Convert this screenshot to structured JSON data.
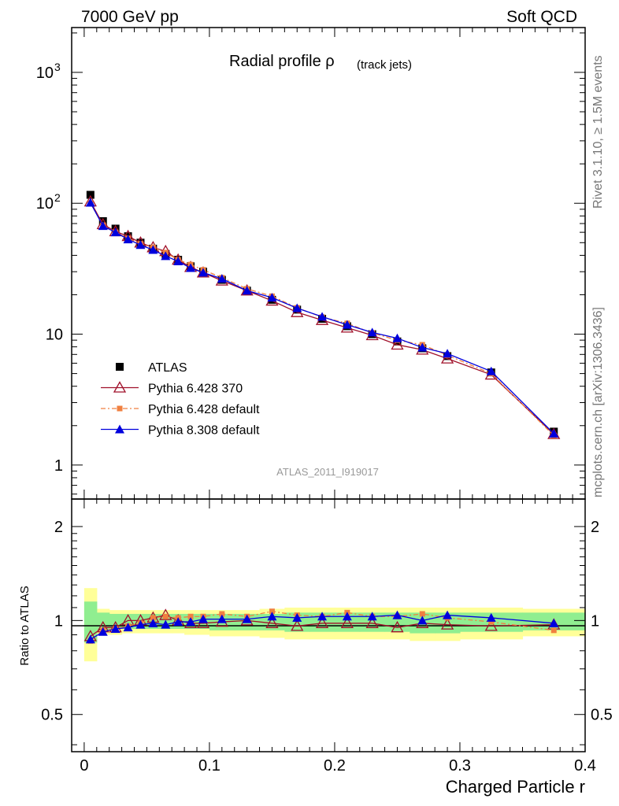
{
  "header": {
    "left": "7000 GeV pp",
    "right": "Soft QCD"
  },
  "side": {
    "rivet": "Rivet 3.1.10, ≥ 1.5M events",
    "mcplots": "mcplots.cern.ch [arXiv:1306.3436]"
  },
  "chart_data": [
    {
      "type": "line",
      "title": "Radial profile ρ",
      "title_suffix": "(track jets)",
      "watermark": "ATLAS_2011_I919017",
      "xlabel": "",
      "ylabel": "",
      "xlim": [
        -0.01,
        0.4
      ],
      "ylim": [
        0.55,
        2200
      ],
      "yscale": "log",
      "yticks": [
        1,
        10,
        100,
        1000
      ],
      "ytick_labels": [
        "1",
        "10",
        "10^2",
        "10^3"
      ],
      "legend": {
        "position": "bottom-left"
      },
      "x": [
        0.005,
        0.015,
        0.025,
        0.035,
        0.045,
        0.055,
        0.065,
        0.075,
        0.085,
        0.095,
        0.11,
        0.13,
        0.15,
        0.17,
        0.19,
        0.21,
        0.23,
        0.25,
        0.27,
        0.29,
        0.325,
        0.375
      ],
      "series": [
        {
          "name": "ATLAS",
          "color": "#000000",
          "marker": "square",
          "values": [
            116,
            73,
            64,
            56,
            50,
            45,
            41,
            37,
            33,
            30,
            26,
            21.5,
            18.3,
            15.4,
            13.1,
            11.5,
            10.0,
            8.8,
            7.8,
            6.8,
            5.1,
            1.8
          ]
        },
        {
          "name": "Pythia 6.428 370",
          "color": "#a0102a",
          "marker": "open-triangle",
          "values": [
            103,
            69,
            61,
            56,
            50,
            46,
            43,
            37,
            32.5,
            29.5,
            25.6,
            21.5,
            18.0,
            14.7,
            12.8,
            11.2,
            9.8,
            8.3,
            7.6,
            6.5,
            4.9,
            1.72
          ]
        },
        {
          "name": "Pythia 6.428 default",
          "color": "#f08040",
          "marker": "square-dash",
          "values": [
            100,
            68,
            60,
            54,
            49,
            46,
            42,
            37,
            34,
            31,
            27,
            22.2,
            19.5,
            15.9,
            13.5,
            12.1,
            10.2,
            9.0,
            8.3,
            6.9,
            5.0,
            1.68
          ]
        },
        {
          "name": "Pythia 8.308 default",
          "color": "#0000dd",
          "marker": "triangle",
          "values": [
            101,
            67,
            60,
            53,
            48,
            44,
            39.5,
            36,
            32,
            29.5,
            26.5,
            21.5,
            19.0,
            15.8,
            13.6,
            11.8,
            10.3,
            9.3,
            7.9,
            7.1,
            5.2,
            1.74
          ]
        }
      ]
    },
    {
      "type": "line",
      "xlabel": "Charged Particle r",
      "ylabel": "Ratio to ATLAS",
      "xlim": [
        -0.01,
        0.4
      ],
      "ylim": [
        0.38,
        2.45
      ],
      "yscale": "log",
      "xticks": [
        0,
        0.1,
        0.2,
        0.3,
        0.4
      ],
      "xtick_labels": [
        "0",
        "0.1",
        "0.2",
        "0.3",
        "0.4"
      ],
      "yticks": [
        0.5,
        1,
        2
      ],
      "ytick_labels": [
        "0.5",
        "1",
        "2"
      ],
      "bin_edges": [
        0,
        0.01,
        0.02,
        0.03,
        0.04,
        0.05,
        0.06,
        0.07,
        0.08,
        0.09,
        0.1,
        0.12,
        0.14,
        0.16,
        0.18,
        0.2,
        0.22,
        0.24,
        0.26,
        0.28,
        0.3,
        0.35,
        0.4
      ],
      "band_inner": {
        "color": "#90ee90",
        "lo": [
          0.85,
          0.93,
          0.94,
          0.94,
          0.94,
          0.94,
          0.94,
          0.94,
          0.94,
          0.94,
          0.93,
          0.93,
          0.93,
          0.92,
          0.92,
          0.92,
          0.92,
          0.92,
          0.91,
          0.91,
          0.92,
          0.93
        ],
        "hi": [
          1.15,
          1.06,
          1.05,
          1.05,
          1.05,
          1.05,
          1.05,
          1.05,
          1.05,
          1.05,
          1.05,
          1.05,
          1.05,
          1.06,
          1.06,
          1.06,
          1.06,
          1.06,
          1.06,
          1.06,
          1.06,
          1.06
        ]
      },
      "band_outer": {
        "color": "#ffff99",
        "lo": [
          0.74,
          0.9,
          0.9,
          0.91,
          0.91,
          0.91,
          0.91,
          0.91,
          0.9,
          0.9,
          0.89,
          0.89,
          0.88,
          0.87,
          0.87,
          0.87,
          0.87,
          0.87,
          0.86,
          0.86,
          0.87,
          0.89
        ],
        "hi": [
          1.27,
          1.09,
          1.08,
          1.08,
          1.08,
          1.08,
          1.08,
          1.08,
          1.08,
          1.08,
          1.08,
          1.08,
          1.09,
          1.1,
          1.1,
          1.1,
          1.1,
          1.1,
          1.1,
          1.1,
          1.1,
          1.09
        ]
      },
      "x": [
        0.005,
        0.015,
        0.025,
        0.035,
        0.045,
        0.055,
        0.065,
        0.075,
        0.085,
        0.095,
        0.11,
        0.13,
        0.15,
        0.17,
        0.19,
        0.21,
        0.23,
        0.25,
        0.27,
        0.29,
        0.325,
        0.375
      ],
      "series": [
        {
          "name": "Pythia 6.428 370",
          "color": "#a0102a",
          "marker": "open-triangle",
          "values": [
            0.89,
            0.95,
            0.95,
            1.0,
            1.0,
            1.02,
            1.04,
            1.0,
            0.98,
            0.98,
            0.99,
            1.0,
            0.98,
            0.96,
            0.98,
            0.98,
            0.98,
            0.95,
            0.98,
            0.97,
            0.96,
            0.97
          ]
        },
        {
          "name": "Pythia 6.428 default",
          "color": "#f08040",
          "marker": "square-dash",
          "values": [
            0.86,
            0.93,
            0.94,
            0.96,
            0.98,
            1.02,
            1.03,
            1.02,
            1.03,
            1.03,
            1.05,
            1.03,
            1.07,
            1.04,
            1.03,
            1.06,
            1.03,
            1.03,
            1.05,
            1.02,
            0.99,
            0.93
          ]
        },
        {
          "name": "Pythia 8.308 default",
          "color": "#0000dd",
          "marker": "triangle",
          "values": [
            0.87,
            0.92,
            0.94,
            0.95,
            0.97,
            0.98,
            0.97,
            0.99,
            0.99,
            1.01,
            1.01,
            1.01,
            1.03,
            1.02,
            1.03,
            1.03,
            1.03,
            1.04,
            1.0,
            1.04,
            1.02,
            0.98
          ]
        }
      ]
    }
  ]
}
